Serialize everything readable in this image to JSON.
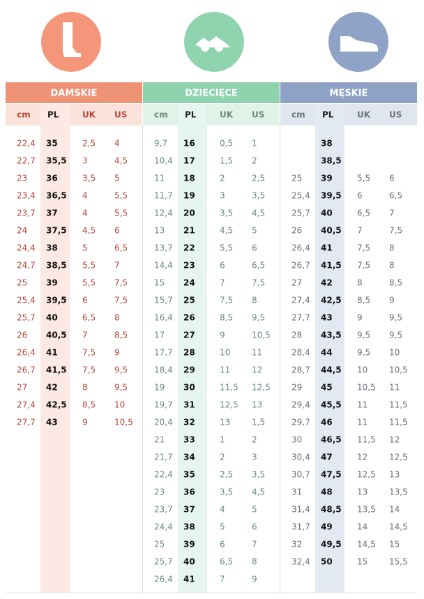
{
  "sections": [
    {
      "title": "DAMSKIE",
      "columns": [
        "cm",
        "PL",
        "UK",
        "US"
      ],
      "rows": [
        [
          "22,4",
          "35",
          "2,5",
          "4"
        ],
        [
          "22,7",
          "35,5",
          "3",
          "4,5"
        ],
        [
          "23",
          "36",
          "3,5",
          "5"
        ],
        [
          "23,4",
          "36,5",
          "4",
          "5,5"
        ],
        [
          "23,7",
          "37",
          "4",
          "5,5"
        ],
        [
          "24",
          "37,5",
          "4,5",
          "6"
        ],
        [
          "24,4",
          "38",
          "5",
          "6,5"
        ],
        [
          "24,7",
          "38,5",
          "5,5",
          "7"
        ],
        [
          "25",
          "39",
          "5,5",
          "7,5"
        ],
        [
          "25,4",
          "39,5",
          "6",
          "7,5"
        ],
        [
          "25,7",
          "40",
          "6,5",
          "8"
        ],
        [
          "26",
          "40,5",
          "7",
          "8,5"
        ],
        [
          "26,4",
          "41",
          "7,5",
          "9"
        ],
        [
          "26,7",
          "41,5",
          "7,5",
          "9,5"
        ],
        [
          "27",
          "42",
          "8",
          "9,5"
        ],
        [
          "27,4",
          "42,5",
          "8,5",
          "10"
        ],
        [
          "27,7",
          "43",
          "9",
          "10,5"
        ]
      ]
    },
    {
      "title": "DZIECIĘCE",
      "columns": [
        "cm",
        "PL",
        "UK",
        "US"
      ],
      "rows": [
        [
          "9,7",
          "16",
          "0,5",
          "1"
        ],
        [
          "10,4",
          "17",
          "1,5",
          "2"
        ],
        [
          "11",
          "18",
          "2",
          "2,5"
        ],
        [
          "11,7",
          "19",
          "3",
          "3,5"
        ],
        [
          "12,4",
          "20",
          "3,5",
          "4,5"
        ],
        [
          "13",
          "21",
          "4,5",
          "5"
        ],
        [
          "13,7",
          "22",
          "5,5",
          "6"
        ],
        [
          "14,4",
          "23",
          "6",
          "6,5"
        ],
        [
          "15",
          "24",
          "7",
          "7,5"
        ],
        [
          "15,7",
          "25",
          "7,5",
          "8"
        ],
        [
          "16,4",
          "26",
          "8,5",
          "9,5"
        ],
        [
          "17",
          "27",
          "9",
          "10,5"
        ],
        [
          "17,7",
          "28",
          "10",
          "11"
        ],
        [
          "18,4",
          "29",
          "11",
          "12"
        ],
        [
          "19",
          "30",
          "11,5",
          "12,5"
        ],
        [
          "19,7",
          "31",
          "12,5",
          "13"
        ],
        [
          "20,4",
          "32",
          "13",
          "1,5"
        ],
        [
          "21",
          "33",
          "1",
          "2"
        ],
        [
          "21,7",
          "34",
          "2",
          "3"
        ],
        [
          "22,4",
          "35",
          "2,5",
          "3,5"
        ],
        [
          "23",
          "36",
          "3,5",
          "4,5"
        ],
        [
          "23,7",
          "37",
          "4",
          "5"
        ],
        [
          "24,4",
          "38",
          "5",
          "6"
        ],
        [
          "25",
          "39",
          "6",
          "7"
        ],
        [
          "25,7",
          "40",
          "6,5",
          "8"
        ],
        [
          "26,4",
          "41",
          "7",
          "9"
        ]
      ]
    },
    {
      "title": "MĘSKIE",
      "columns": [
        "cm",
        "PL",
        "UK",
        "US"
      ],
      "rows": [
        [
          null,
          "38",
          null,
          null
        ],
        [
          null,
          "38,5",
          null,
          null
        ],
        [
          "25",
          "39",
          "5,5",
          "6"
        ],
        [
          "25,4",
          "39,5",
          "6",
          "6,5"
        ],
        [
          "25,7",
          "40",
          "6,5",
          "7"
        ],
        [
          "26",
          "40,5",
          "7",
          "7,5"
        ],
        [
          "26,4",
          "41",
          "7,5",
          "8"
        ],
        [
          "26,7",
          "41,5",
          "7,5",
          "8"
        ],
        [
          "27",
          "42",
          "8",
          "8,5"
        ],
        [
          "27,4",
          "42,5",
          "8,5",
          "9"
        ],
        [
          "27,7",
          "43",
          "9",
          "9,5"
        ],
        [
          "28",
          "43,5",
          "9,5",
          "9,5"
        ],
        [
          "28,4",
          "44",
          "9,5",
          "10"
        ],
        [
          "28,7",
          "44,5",
          "10",
          "10,5"
        ],
        [
          "29",
          "45",
          "10,5",
          "11"
        ],
        [
          "29,4",
          "45,5",
          "11",
          "11,5"
        ],
        [
          "29,7",
          "46",
          "11",
          "11,5"
        ],
        [
          "30",
          "46,5",
          "11,5",
          "12"
        ],
        [
          "30,4",
          "47",
          "12",
          "12,5"
        ],
        [
          "30,7",
          "47,5",
          "12,5",
          "13"
        ],
        [
          "31",
          "48",
          "13",
          "13,5"
        ],
        [
          "31,4",
          "48,5",
          "13,5",
          "14"
        ],
        [
          "31,7",
          "49",
          "14",
          "14,5"
        ],
        [
          "32",
          "49,5",
          "14,5",
          "15"
        ],
        [
          "32,4",
          "50",
          "15",
          "15,5"
        ]
      ]
    }
  ]
}
